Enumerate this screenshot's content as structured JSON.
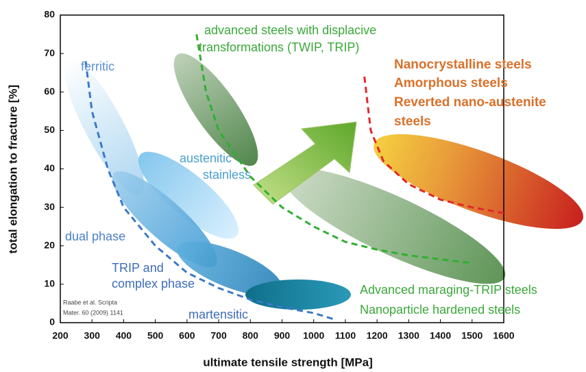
{
  "chart_data": {
    "type": "line",
    "xlabel": "ultimate tensile strength [MPa]",
    "ylabel": "total elongation to fracture [%]",
    "xlim": [
      200,
      1600
    ],
    "ylim": [
      0,
      80
    ],
    "xticks": [
      200,
      300,
      400,
      500,
      600,
      700,
      800,
      900,
      1000,
      1100,
      1200,
      1300,
      1400,
      1500,
      1600
    ],
    "yticks": [
      0,
      10,
      20,
      30,
      40,
      50,
      60,
      70,
      80
    ],
    "grid": false,
    "series": [
      {
        "color": "#3a78c8",
        "x": [
          280,
          300,
          350,
          400,
          500,
          600,
          700,
          800,
          900,
          1000,
          1060
        ],
        "values": [
          68,
          55,
          40,
          30,
          20,
          13,
          9,
          6,
          4,
          2.5,
          1
        ]
      },
      {
        "color": "#2fb02f",
        "x": [
          630,
          660,
          700,
          800,
          900,
          1000,
          1100,
          1200,
          1300,
          1400,
          1500
        ],
        "values": [
          75,
          60,
          50,
          38,
          30,
          25,
          21,
          19,
          17.5,
          16.5,
          15.5
        ]
      },
      {
        "color": "#e3262a",
        "x": [
          1160,
          1180,
          1220,
          1300,
          1400,
          1500,
          1600
        ],
        "values": [
          64,
          50,
          42,
          36,
          32,
          30,
          28.5
        ]
      }
    ],
    "annotations": [
      {
        "text": "ferritic",
        "color": "#5b8fd0"
      },
      {
        "text": "advanced steels with displacive",
        "color": "#3aa83a"
      },
      {
        "text": "transformations (TWIP, TRIP)",
        "color": "#3aa83a"
      },
      {
        "text": "Nanocrystalline steels",
        "color": "#d9702a"
      },
      {
        "text": "Amorphous steels",
        "color": "#d9702a"
      },
      {
        "text": "Reverted nano-austenite",
        "color": "#d9702a"
      },
      {
        "text": "steels",
        "color": "#d9702a"
      },
      {
        "text": "austenitic",
        "color": "#4a9fd0"
      },
      {
        "text": "stainless",
        "color": "#4a9fd0"
      },
      {
        "text": "dual phase",
        "color": "#4a7fc8"
      },
      {
        "text": "TRIP and",
        "color": "#3d6cb8"
      },
      {
        "text": "complex phase",
        "color": "#3d6cb8"
      },
      {
        "text": "martensitic",
        "color": "#3d6cb8"
      },
      {
        "text": "Advanced maraging-TRIP steels",
        "color": "#3aa83a"
      },
      {
        "text": "Nanoparticle hardened steels",
        "color": "#3aa83a"
      },
      {
        "text": "Raabe et al. Scripta",
        "color": "#444444"
      },
      {
        "text": "Mater. 60 (2009) 1141",
        "color": "#444444"
      }
    ]
  }
}
